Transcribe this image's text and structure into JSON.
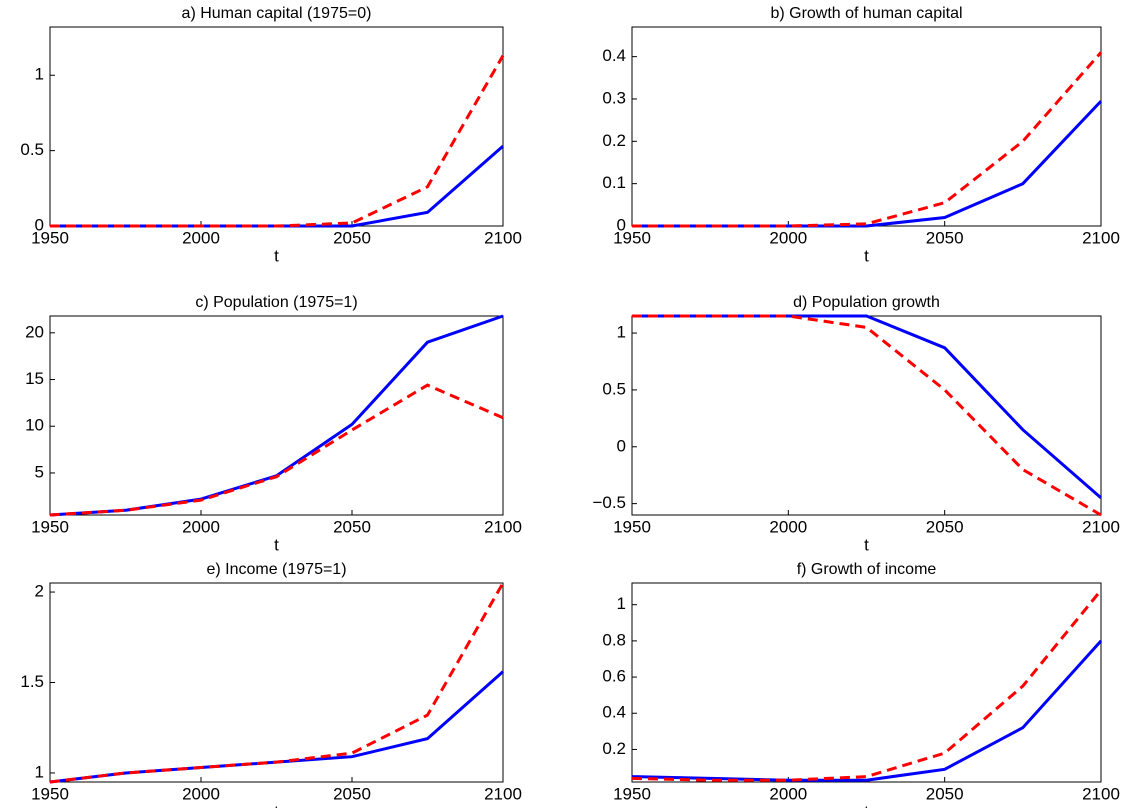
{
  "chart_data": [
    {
      "type": "line",
      "title": "a) Human capital (1975=0)",
      "xlabel": "t",
      "x": [
        1950,
        1975,
        2000,
        2025,
        2050,
        2075,
        2100
      ],
      "xlim": [
        1950,
        2100
      ],
      "xticks": [
        1950,
        2000,
        2050,
        2100
      ],
      "ylim": [
        0,
        1.32
      ],
      "yticks": [
        0,
        0.5,
        1
      ],
      "series": [
        {
          "color": "#0000ff",
          "style": "solid",
          "values": [
            0,
            0,
            0,
            0,
            0,
            0.09,
            0.53
          ]
        },
        {
          "color": "#ff0000",
          "style": "dashed",
          "values": [
            0,
            0,
            0,
            0,
            0.02,
            0.26,
            1.13
          ]
        }
      ]
    },
    {
      "type": "line",
      "title": "b) Growth of human capital",
      "xlabel": "t",
      "x": [
        1950,
        1975,
        2000,
        2025,
        2050,
        2075,
        2100
      ],
      "xlim": [
        1950,
        2100
      ],
      "xticks": [
        1950,
        2000,
        2050,
        2100
      ],
      "ylim": [
        0,
        0.47
      ],
      "yticks": [
        0,
        0.1,
        0.2,
        0.3,
        0.4
      ],
      "series": [
        {
          "color": "#0000ff",
          "style": "solid",
          "values": [
            0,
            0,
            0,
            0,
            0.02,
            0.1,
            0.295
          ]
        },
        {
          "color": "#ff0000",
          "style": "dashed",
          "values": [
            0,
            0,
            0,
            0.005,
            0.055,
            0.2,
            0.41
          ]
        }
      ]
    },
    {
      "type": "line",
      "title": "c) Population (1975=1)",
      "xlabel": "t",
      "x": [
        1950,
        1975,
        2000,
        2025,
        2050,
        2075,
        2100
      ],
      "xlim": [
        1950,
        2100
      ],
      "xticks": [
        1950,
        2000,
        2050,
        2100
      ],
      "ylim": [
        0.5,
        21.8
      ],
      "yticks": [
        5,
        10,
        15,
        20
      ],
      "series": [
        {
          "color": "#0000ff",
          "style": "solid",
          "values": [
            0.5,
            1,
            2.2,
            4.7,
            10.2,
            19,
            21.8
          ]
        },
        {
          "color": "#ff0000",
          "style": "dashed",
          "values": [
            0.5,
            1,
            2.1,
            4.6,
            9.6,
            14.4,
            10.9
          ]
        }
      ]
    },
    {
      "type": "line",
      "title": "d) Population growth",
      "xlabel": "t",
      "x": [
        1950,
        1975,
        2000,
        2025,
        2050,
        2075,
        2100
      ],
      "xlim": [
        1950,
        2100
      ],
      "xticks": [
        1950,
        2000,
        2050,
        2100
      ],
      "ylim": [
        -0.6,
        1.15
      ],
      "yticks": [
        {
          "value": -0.5,
          "label": "−0.5"
        },
        0,
        0.5,
        1
      ],
      "series": [
        {
          "color": "#0000ff",
          "style": "solid",
          "values": [
            1.15,
            1.15,
            1.15,
            1.15,
            0.87,
            0.15,
            -0.45
          ]
        },
        {
          "color": "#ff0000",
          "style": "dashed",
          "values": [
            1.15,
            1.15,
            1.15,
            1.05,
            0.5,
            -0.2,
            -0.6
          ]
        }
      ]
    },
    {
      "type": "line",
      "title": "e) Income (1975=1)",
      "xlabel": "t",
      "x": [
        1950,
        1975,
        2000,
        2025,
        2050,
        2075,
        2100
      ],
      "xlim": [
        1950,
        2100
      ],
      "xticks": [
        1950,
        2000,
        2050,
        2100
      ],
      "ylim": [
        0.95,
        2.05
      ],
      "yticks": [
        1,
        1.5,
        2
      ],
      "series": [
        {
          "color": "#0000ff",
          "style": "solid",
          "values": [
            0.95,
            1,
            1.03,
            1.06,
            1.09,
            1.19,
            1.56
          ]
        },
        {
          "color": "#ff0000",
          "style": "dashed",
          "values": [
            0.95,
            1,
            1.03,
            1.06,
            1.11,
            1.32,
            2.05
          ]
        }
      ]
    },
    {
      "type": "line",
      "title": "f) Growth of income",
      "xlabel": "t",
      "x": [
        1950,
        1975,
        2000,
        2025,
        2050,
        2075,
        2100
      ],
      "xlim": [
        1950,
        2100
      ],
      "xticks": [
        1950,
        2000,
        2050,
        2100
      ],
      "ylim": [
        0.02,
        1.12
      ],
      "yticks": [
        0.2,
        0.4,
        0.6,
        0.8,
        1
      ],
      "series": [
        {
          "color": "#0000ff",
          "style": "solid",
          "values": [
            0.05,
            0.04,
            0.03,
            0.03,
            0.09,
            0.32,
            0.8
          ]
        },
        {
          "color": "#ff0000",
          "style": "dashed",
          "values": [
            0.04,
            0.03,
            0.03,
            0.05,
            0.18,
            0.55,
            1.08
          ]
        }
      ]
    }
  ]
}
